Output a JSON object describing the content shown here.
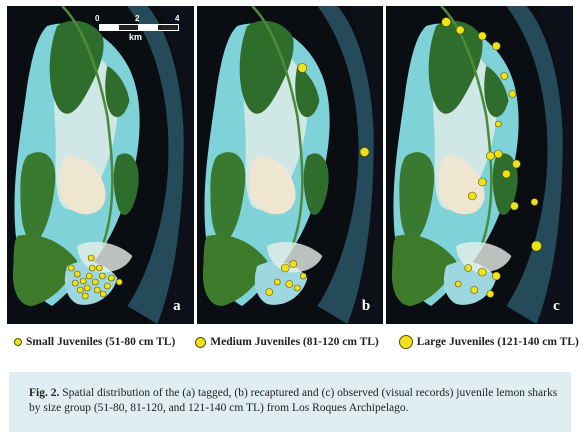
{
  "scale_bar": {
    "ticks": [
      "0",
      "2",
      "4"
    ],
    "unit": "km"
  },
  "panels": [
    {
      "letter": "a"
    },
    {
      "letter": "b"
    },
    {
      "letter": "c"
    }
  ],
  "legend": [
    {
      "label": "Small Juveniles (51-80 cm TL)",
      "size": "small"
    },
    {
      "label": "Medium Juveniles (81-120 cm TL)",
      "size": "medium"
    },
    {
      "label": "Large Juveniles (121-140 cm TL)",
      "size": "large"
    }
  ],
  "caption": {
    "label": "Fig. 2.",
    "text": "Spatial distribution of the (a) tagged, (b) recaptured and (c) observed (visual records) juvenile lemon sharks by size group (51-80, 81-120, and 121-140 cm TL) from Los Roques Archipelago."
  },
  "colors": {
    "marker": "#f0e21a",
    "caption_bg": "#dfeef0"
  }
}
